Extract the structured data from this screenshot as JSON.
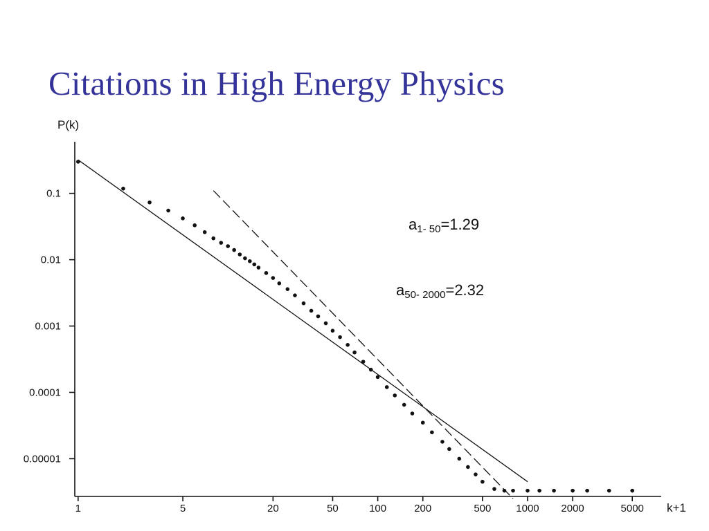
{
  "slide": {
    "title": "Citations in High Energy Physics"
  },
  "chart_data": {
    "type": "scatter",
    "title": "",
    "xlabel": "k+1",
    "ylabel": "P(k)",
    "xscale": "log",
    "yscale": "log",
    "xlim": [
      0.95,
      7800
    ],
    "ylim": [
      2.7e-06,
      0.6
    ],
    "x_ticks": [
      {
        "value": 1,
        "label": "1"
      },
      {
        "value": 5,
        "label": "5"
      },
      {
        "value": 20,
        "label": "20"
      },
      {
        "value": 50,
        "label": "50"
      },
      {
        "value": 100,
        "label": "100"
      },
      {
        "value": 200,
        "label": "200"
      },
      {
        "value": 500,
        "label": "500"
      },
      {
        "value": 1000,
        "label": "1000"
      },
      {
        "value": 2000,
        "label": "2000"
      },
      {
        "value": 5000,
        "label": "5000"
      }
    ],
    "y_ticks": [
      {
        "value": 0.1,
        "label": "0.1"
      },
      {
        "value": 0.01,
        "label": "0.01"
      },
      {
        "value": 0.001,
        "label": "0.001"
      },
      {
        "value": 0.0001,
        "label": "0.0001"
      },
      {
        "value": 1e-05,
        "label": "0.00001"
      }
    ],
    "series": [
      {
        "name": "data",
        "style": "points",
        "x": [
          1,
          2,
          3,
          4,
          5,
          6,
          7,
          8,
          9,
          10,
          11,
          12,
          13,
          14,
          15,
          16,
          18,
          20,
          22,
          25,
          28,
          32,
          36,
          40,
          45,
          50,
          56,
          63,
          70,
          80,
          90,
          100,
          115,
          130,
          150,
          170,
          200,
          230,
          270,
          300,
          350,
          400,
          450,
          500,
          600,
          700,
          800,
          1000,
          1200,
          1500,
          2000,
          2500,
          3500,
          5000
        ],
        "y": [
          0.3,
          0.118,
          0.073,
          0.055,
          0.042,
          0.033,
          0.026,
          0.021,
          0.018,
          0.016,
          0.014,
          0.012,
          0.0105,
          0.0095,
          0.0085,
          0.0076,
          0.0063,
          0.0053,
          0.0044,
          0.0036,
          0.0029,
          0.0022,
          0.0017,
          0.0014,
          0.0011,
          0.00085,
          0.00068,
          0.00052,
          0.0004,
          0.00029,
          0.00022,
          0.00017,
          0.00012,
          9e-05,
          6.5e-05,
          4.8e-05,
          3.5e-05,
          2.5e-05,
          1.8e-05,
          1.4e-05,
          1e-05,
          7.5e-06,
          5.8e-06,
          4.5e-06,
          3.5e-06,
          3.3e-06,
          3.3e-06,
          3.3e-06,
          3.3e-06,
          3.3e-06,
          3.3e-06,
          3.3e-06,
          3.3e-06,
          3.3e-06
        ]
      },
      {
        "name": "fit 1-50",
        "style": "solid-line",
        "exponent": 1.29,
        "x": [
          1,
          1000
        ],
        "y": [
          0.32,
          4.5e-06
        ]
      },
      {
        "name": "fit 50-2000",
        "style": "dashed-line",
        "exponent": 2.32,
        "x": [
          8,
          800
        ],
        "y": [
          0.11,
          2.5e-06
        ]
      }
    ],
    "annotations": [
      {
        "base": "a",
        "subscript": "1- 50",
        "value": "=1.29"
      },
      {
        "base": "a",
        "subscript": "50- 2000",
        "value": "=2.32"
      }
    ],
    "grid": false,
    "legend": "none"
  }
}
